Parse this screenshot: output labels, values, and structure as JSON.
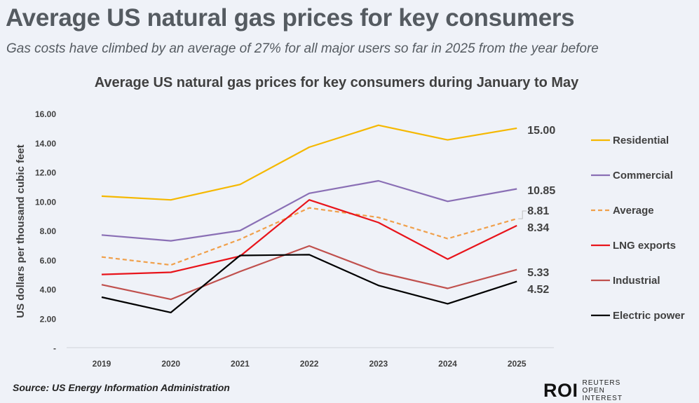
{
  "header": {
    "title": "Average US natural gas prices for key consumers",
    "subtitle": "Gas costs have climbed by an average of 27% for all major users so far in 2025 from the year before"
  },
  "footer": {
    "source": "Source: US Energy Information Administration",
    "logo_mark": "ROI",
    "logo_text": "REUTERS OPEN INTEREST"
  },
  "chart_data": {
    "type": "line",
    "title": "Average US natural gas prices for key consumers during January to May",
    "xlabel": "",
    "ylabel": "US dollars per thousand cubic feet",
    "categories": [
      "2019",
      "2020",
      "2021",
      "2022",
      "2023",
      "2024",
      "2025"
    ],
    "ylim": [
      0,
      16
    ],
    "yticks": [
      0,
      2,
      4,
      6,
      8,
      10,
      12,
      14,
      16
    ],
    "ytick_labels": [
      "-",
      "2.00",
      "4.00",
      "6.00",
      "8.00",
      "10.00",
      "12.00",
      "14.00",
      "16.00"
    ],
    "grid": false,
    "legend_position": "right",
    "series": [
      {
        "name": "Residential",
        "color": "#f5b800",
        "dashed": false,
        "values": [
          10.35,
          10.1,
          11.15,
          13.7,
          15.2,
          14.2,
          15.0
        ],
        "end_label": "15.00"
      },
      {
        "name": "Commercial",
        "color": "#8a6fb5",
        "dashed": false,
        "values": [
          7.7,
          7.3,
          8.0,
          10.55,
          11.4,
          10.0,
          10.85
        ],
        "end_label": "10.85"
      },
      {
        "name": "Average",
        "color": "#f0a04b",
        "dashed": true,
        "values": [
          6.2,
          5.65,
          7.4,
          9.55,
          8.9,
          7.45,
          8.81
        ],
        "end_label": "8.81"
      },
      {
        "name": "LNG exports",
        "color": "#e8141b",
        "dashed": false,
        "values": [
          5.0,
          5.15,
          6.25,
          10.1,
          8.55,
          6.05,
          8.34
        ],
        "end_label": "8.34"
      },
      {
        "name": "Industrial",
        "color": "#c0504d",
        "dashed": false,
        "values": [
          4.3,
          3.3,
          5.2,
          6.95,
          5.15,
          4.05,
          5.33
        ],
        "end_label": "5.33"
      },
      {
        "name": "Electric power",
        "color": "#000000",
        "dashed": false,
        "values": [
          3.45,
          2.4,
          6.3,
          6.35,
          4.25,
          3.0,
          4.52
        ],
        "end_label": "4.52"
      }
    ]
  }
}
